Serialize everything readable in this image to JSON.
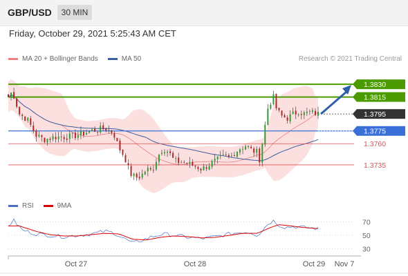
{
  "header": {
    "pair": "GBP/USD",
    "timeframe": "30 MIN"
  },
  "datetime": "Friday, October 29, 2021 5:25:43 AM CET",
  "credit": "Research © 2021 Trading Central",
  "legend_main": [
    {
      "label": "MA 20 + Bollinger Bands",
      "color": "#f08080"
    },
    {
      "label": "MA 50",
      "color": "#3a5fa0"
    }
  ],
  "legend_rsi": [
    {
      "label": "RSI",
      "color": "#4a6fc0"
    },
    {
      "label": "9MA",
      "color": "#dd0000"
    }
  ],
  "colors": {
    "up": "#2e9b2e",
    "down": "#b22222",
    "resistance": "#4a9a00",
    "support_blue": "#3a6fd8",
    "support_red": "#e05050",
    "band": "#fbd4d4",
    "ma50": "#3a5fa0",
    "ma20": "#e88080",
    "rsi": "#5a7fd0",
    "rsi_ma": "#dd0000",
    "arrow": "#2f5fa8"
  },
  "chart_data": {
    "type": "candlestick",
    "symbol": "GBP/USD",
    "timeframe": "30 MIN",
    "ylim": [
      1.37,
      1.3848
    ],
    "x_ticks": [
      "Oct 27",
      "Oct 28",
      "Oct 29",
      "Nov 7"
    ],
    "x_tick_positions": [
      0.245,
      0.675,
      1.105,
      1.215
    ],
    "levels": [
      {
        "value": 1.383,
        "label": "1.3830",
        "kind": "resistance"
      },
      {
        "value": 1.3815,
        "label": "1.3815",
        "kind": "resistance"
      },
      {
        "value": 1.3795,
        "label": "1.3795",
        "kind": "last"
      },
      {
        "value": 1.3775,
        "label": "1.3775",
        "kind": "support"
      },
      {
        "value": 1.376,
        "label": "1.3760",
        "kind": "support_minor"
      },
      {
        "value": 1.3735,
        "label": "1.3735",
        "kind": "support_minor"
      }
    ],
    "close_anchors": [
      [
        0,
        1.3815
      ],
      [
        0.015,
        1.3822
      ],
      [
        0.04,
        1.3795
      ],
      [
        0.07,
        1.3788
      ],
      [
        0.1,
        1.377
      ],
      [
        0.13,
        1.3765
      ],
      [
        0.17,
        1.3768
      ],
      [
        0.21,
        1.3768
      ],
      [
        0.25,
        1.377
      ],
      [
        0.3,
        1.3775
      ],
      [
        0.35,
        1.3778
      ],
      [
        0.38,
        1.3773
      ],
      [
        0.4,
        1.3755
      ],
      [
        0.42,
        1.3745
      ],
      [
        0.44,
        1.3725
      ],
      [
        0.46,
        1.372
      ],
      [
        0.48,
        1.3722
      ],
      [
        0.5,
        1.373
      ],
      [
        0.52,
        1.3728
      ],
      [
        0.54,
        1.3745
      ],
      [
        0.56,
        1.3755
      ],
      [
        0.58,
        1.375
      ],
      [
        0.6,
        1.374
      ],
      [
        0.62,
        1.3738
      ],
      [
        0.64,
        1.3738
      ],
      [
        0.66,
        1.3735
      ],
      [
        0.68,
        1.3733
      ],
      [
        0.7,
        1.373
      ],
      [
        0.72,
        1.3734
      ],
      [
        0.74,
        1.3738
      ],
      [
        0.76,
        1.3742
      ],
      [
        0.78,
        1.3745
      ],
      [
        0.8,
        1.3743
      ],
      [
        0.82,
        1.375
      ],
      [
        0.84,
        1.3755
      ],
      [
        0.86,
        1.3758
      ],
      [
        0.88,
        1.3752
      ],
      [
        0.9,
        1.375
      ],
      [
        0.91,
        1.374
      ],
      [
        0.92,
        1.3765
      ],
      [
        0.94,
        1.3805
      ],
      [
        0.96,
        1.3815
      ],
      [
        0.97,
        1.38
      ],
      [
        0.99,
        1.3792
      ],
      [
        1.01,
        1.379
      ],
      [
        1.03,
        1.3795
      ],
      [
        1.05,
        1.3798
      ],
      [
        1.07,
        1.3795
      ],
      [
        1.09,
        1.3797
      ],
      [
        1.11,
        1.3796
      ],
      [
        1.12,
        1.3795
      ]
    ],
    "last_price": 1.3795,
    "forecast_target": 1.383,
    "rsi": {
      "ylim": [
        20,
        80
      ],
      "ticks": [
        70,
        50,
        30
      ],
      "rsi_anchors": [
        [
          0,
          65
        ],
        [
          0.02,
          72
        ],
        [
          0.05,
          58
        ],
        [
          0.1,
          52
        ],
        [
          0.15,
          50
        ],
        [
          0.2,
          48
        ],
        [
          0.25,
          50
        ],
        [
          0.3,
          52
        ],
        [
          0.35,
          56
        ],
        [
          0.38,
          54
        ],
        [
          0.42,
          45
        ],
        [
          0.45,
          38
        ],
        [
          0.48,
          42
        ],
        [
          0.52,
          48
        ],
        [
          0.56,
          52
        ],
        [
          0.6,
          50
        ],
        [
          0.65,
          47
        ],
        [
          0.7,
          45
        ],
        [
          0.75,
          48
        ],
        [
          0.8,
          52
        ],
        [
          0.85,
          55
        ],
        [
          0.88,
          54
        ],
        [
          0.9,
          50
        ],
        [
          0.92,
          58
        ],
        [
          0.94,
          68
        ],
        [
          0.96,
          72
        ],
        [
          0.98,
          65
        ],
        [
          1.0,
          62
        ],
        [
          1.03,
          63
        ],
        [
          1.06,
          62
        ],
        [
          1.09,
          61
        ],
        [
          1.12,
          60
        ]
      ],
      "ma_anchors": [
        [
          0,
          64
        ],
        [
          0.04,
          64
        ],
        [
          0.1,
          56
        ],
        [
          0.15,
          51
        ],
        [
          0.2,
          49
        ],
        [
          0.25,
          49
        ],
        [
          0.3,
          51
        ],
        [
          0.35,
          53
        ],
        [
          0.4,
          52
        ],
        [
          0.45,
          44
        ],
        [
          0.5,
          43
        ],
        [
          0.55,
          47
        ],
        [
          0.6,
          49
        ],
        [
          0.65,
          48
        ],
        [
          0.7,
          46
        ],
        [
          0.75,
          47
        ],
        [
          0.8,
          50
        ],
        [
          0.85,
          53
        ],
        [
          0.9,
          53
        ],
        [
          0.95,
          62
        ],
        [
          0.98,
          66
        ],
        [
          1.02,
          64
        ],
        [
          1.06,
          62
        ],
        [
          1.09,
          61
        ],
        [
          1.12,
          60
        ]
      ]
    }
  }
}
